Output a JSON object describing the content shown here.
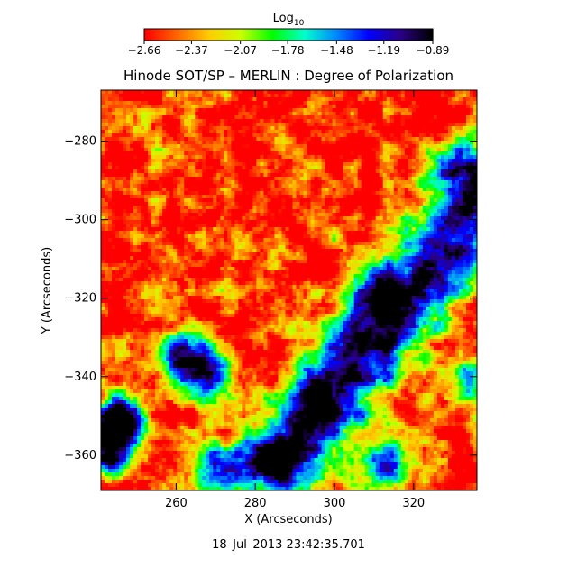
{
  "chart_data": {
    "type": "heatmap",
    "title": "Hinode SOT/SP – MERLIN : Degree of Polarization",
    "xlabel": "X (Arcseconds)",
    "ylabel": "Y (Arcseconds)",
    "xlim": [
      241,
      336
    ],
    "ylim": [
      -369,
      -267
    ],
    "x_ticks": [
      260,
      280,
      300,
      320
    ],
    "x_tick_labels": [
      "260",
      "280",
      "300",
      "320"
    ],
    "y_ticks": [
      -280,
      -300,
      -320,
      -340,
      -360
    ],
    "y_tick_labels": [
      "−280",
      "−300",
      "−320",
      "−340",
      "−360"
    ],
    "colorbar": {
      "label_main": "Log",
      "label_sub": "10",
      "min": -2.66,
      "max": -0.89,
      "ticks": [
        -2.66,
        -2.37,
        -2.07,
        -1.78,
        -1.48,
        -1.19,
        -0.89
      ],
      "tick_labels": [
        "−2.66",
        "−2.37",
        "−2.07",
        "−1.78",
        "−1.48",
        "−1.19",
        "−0.89"
      ],
      "colormap": [
        "#ff0000",
        "#ff6600",
        "#ffcc00",
        "#ccff00",
        "#00ff00",
        "#00ffcc",
        "#0088ff",
        "#0000ff",
        "#2a0088",
        "#000000"
      ]
    },
    "timestamp": "18–Jul–2013 23:42:35.701",
    "grid": false,
    "field_description": "Predominantly low degree of polarization (red, ~−2.6) with a diagonal band of high polarization (blue/purple, ~−1.0) running from lower center toward upper right, plus patches at left and bottom-left."
  }
}
